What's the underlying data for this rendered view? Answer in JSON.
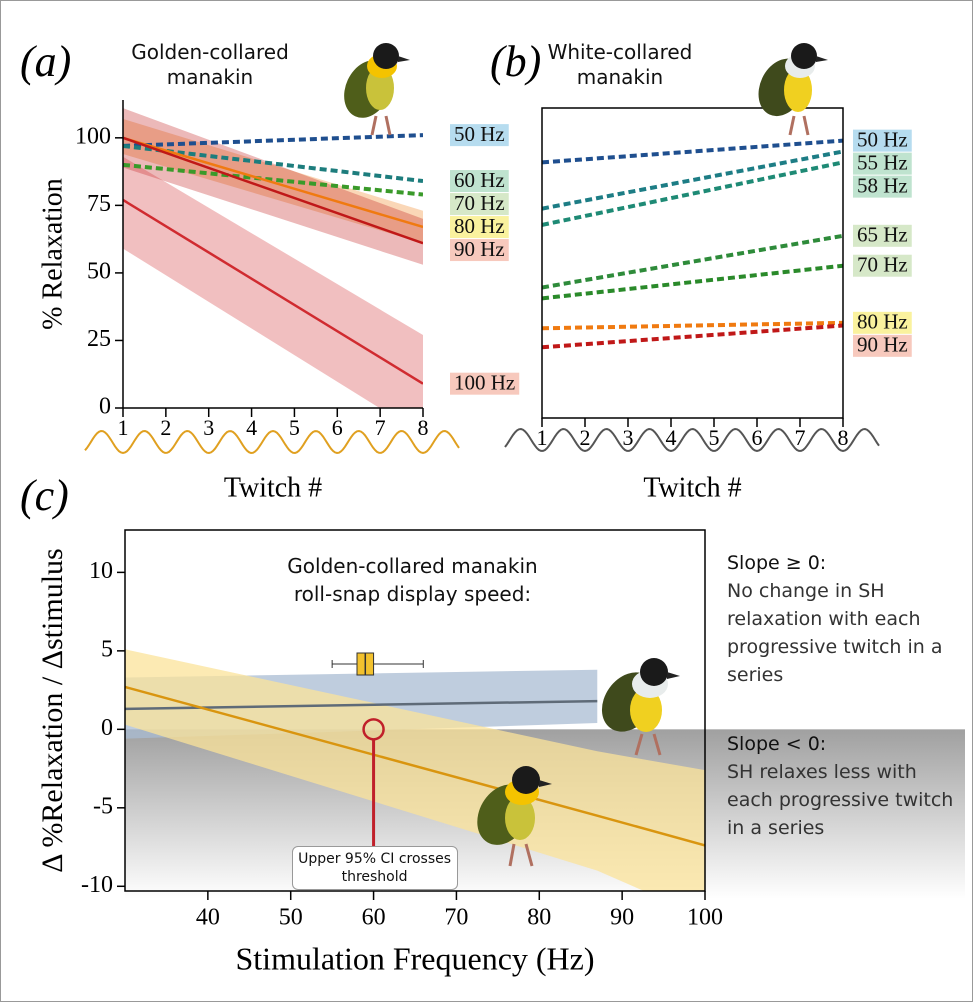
{
  "chart_data": [
    {
      "type": "line",
      "panel_label": "(a)",
      "title": "Golden-collared manakin",
      "x": [
        1,
        8
      ],
      "xlim": [
        1,
        8
      ],
      "xticks": [
        1,
        2,
        3,
        4,
        5,
        6,
        7,
        8
      ],
      "ylim": [
        0,
        114
      ],
      "yticks": [
        0,
        25,
        50,
        75,
        100
      ],
      "xlabel": "Twitch #",
      "ylabel": "% Relaxation",
      "series": [
        {
          "name": "50 Hz",
          "color": "#1f4f8f",
          "label_color": "#b6dcef",
          "dashed": true,
          "values": [
            97,
            101
          ]
        },
        {
          "name": "60 Hz",
          "color": "#1d7d7d",
          "label_color": "#bfe3cf",
          "dashed": true,
          "values": [
            97,
            84
          ]
        },
        {
          "name": "70 Hz",
          "color": "#3a9a2a",
          "label_color": "#d6e8c8",
          "dashed": true,
          "values": [
            90,
            79
          ]
        },
        {
          "name": "80 Hz",
          "color": "#f07a10",
          "label_color": "#faf29e",
          "dashed": false,
          "values": [
            100,
            67
          ],
          "lower": [
            94,
            61
          ],
          "upper": [
            107,
            73
          ]
        },
        {
          "name": "90 Hz",
          "color": "#c01818",
          "label_color": "#f7c9bd",
          "dashed": false,
          "values": [
            100,
            61
          ],
          "lower": [
            89,
            53
          ],
          "upper": [
            111,
            70
          ]
        },
        {
          "name": "100 Hz",
          "color": "#d02b30",
          "label_color": "#f7c9bd",
          "dashed": false,
          "values": [
            77,
            9
          ],
          "lower": [
            59,
            -10
          ],
          "upper": [
            93,
            27
          ]
        }
      ]
    },
    {
      "type": "line",
      "panel_label": "(b)",
      "title": "White-collared manakin",
      "x": [
        1,
        8
      ],
      "xlim": [
        1,
        8
      ],
      "xticks": [
        1,
        2,
        3,
        4,
        5,
        6,
        7,
        8
      ],
      "ylim": [
        0,
        114
      ],
      "xlabel": "Twitch #",
      "series": [
        {
          "name": "50 Hz",
          "color": "#1f4f8f",
          "label_color": "#b6dcef",
          "dashed": true,
          "values": [
            94,
            102
          ]
        },
        {
          "name": "55 Hz",
          "color": "#1d7d85",
          "label_color": "#bfe3cf",
          "dashed": true,
          "values": [
            77,
            98
          ]
        },
        {
          "name": "58 Hz",
          "color": "#1e8a75",
          "label_color": "#bfe3cf",
          "dashed": true,
          "values": [
            71,
            94
          ]
        },
        {
          "name": "65 Hz",
          "color": "#2e8b3a",
          "label_color": "#d6e8c8",
          "dashed": true,
          "values": [
            48,
            67
          ]
        },
        {
          "name": "70 Hz",
          "color": "#2a8a2a",
          "label_color": "#d6e8c8",
          "dashed": true,
          "values": [
            44,
            56
          ]
        },
        {
          "name": "80 Hz",
          "color": "#f07a10",
          "label_color": "#faf29e",
          "dashed": true,
          "values": [
            33,
            35
          ]
        },
        {
          "name": "90 Hz",
          "color": "#c01818",
          "label_color": "#f7c9bd",
          "dashed": true,
          "values": [
            26,
            34
          ]
        }
      ]
    },
    {
      "type": "line",
      "panel_label": "(c)",
      "x": [
        30,
        87,
        100
      ],
      "xlim": [
        30,
        100
      ],
      "xticks": [
        40,
        50,
        60,
        70,
        80,
        90,
        100
      ],
      "ylim": [
        -10.3,
        12.7
      ],
      "yticks": [
        10,
        5,
        0,
        -5,
        -10
      ],
      "xlabel": "Stimulation Frequency (Hz)",
      "ylabel": "Δ %Relaxation / Δstimulus",
      "series": [
        {
          "color": "#5f6b78",
          "band_color": "#a9bcd3",
          "values": [
            1.3,
            1.8,
            null
          ],
          "lower": [
            -0.6,
            0.4,
            null
          ],
          "upper": [
            3.3,
            3.8,
            null
          ]
        },
        {
          "color": "#d9950f",
          "band_color": "#fbe39a",
          "values": [
            2.7,
            -5.5,
            -7.4
          ],
          "lower": [
            0.3,
            -9.0,
            -12
          ],
          "upper": [
            5.1,
            -1.4,
            -2.6
          ]
        }
      ],
      "boxplot": {
        "title": "Golden-collared manakin roll-snap display speed:",
        "min": 55,
        "q1": 58,
        "median": 59,
        "q3": 60,
        "max": 66,
        "color": "#f2c12e"
      },
      "threshold_point": {
        "x": 60,
        "y": 0,
        "label": "Upper 95% CI crosses threshold",
        "color": "#c0202a"
      },
      "notes": [
        {
          "title": "Slope ≥ 0:",
          "text": "No change in SH relaxation with each progressive twitch in a series"
        },
        {
          "title": "Slope < 0:",
          "text": "SH relaxes less with each progressive twitch in a series"
        }
      ]
    }
  ]
}
